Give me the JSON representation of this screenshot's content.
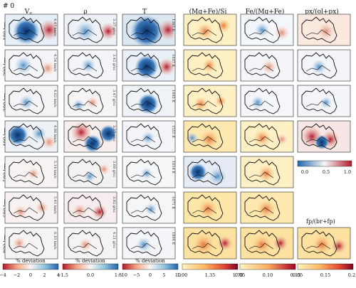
{
  "corner_label": "# 0",
  "column_titles": [
    "V_S",
    "ρ",
    "T",
    "(Mg+Fe)/Si",
    "Fe/(Mg+Fe)",
    "px/(ol+px)"
  ],
  "extra_title": "fp/(br+fp)",
  "depth_rows": [
    "100 km",
    "200 km",
    "300 km",
    "400 km",
    "500 km",
    "600 km",
    "800 km"
  ],
  "side_labels": {
    "vs": [
      "4.47 km/s",
      "4.54 km/s",
      "4.62 km/s",
      "4.86 km/s",
      "5.14 km/s",
      "5.41 km/s",
      "6.10 km/s"
    ],
    "rho": [
      "3.37 g/cc",
      "3.42 g/cc",
      "3.47 g/cc",
      "3.57 g/cc",
      "3.68 g/cc",
      "3.82 g/cc",
      "4.21 g/cc"
    ],
    "t": [
      "1367 K",
      "1437 K",
      "1493 K",
      "1555 K",
      "1614 K",
      "1671 K",
      "1804 K"
    ]
  },
  "colorbars": [
    {
      "label": "% deviation",
      "ticks": [
        "−4",
        "−2",
        "0",
        "2",
        "4"
      ]
    },
    {
      "label": "% deviation",
      "ticks": [
        "−1.5",
        "0.0",
        "1.5"
      ]
    },
    {
      "label": "% deviation",
      "ticks": [
        "−10",
        "−5",
        "0",
        "5",
        "10"
      ]
    },
    {
      "label": "",
      "ticks": [
        "1.00",
        "1.35",
        "1.70"
      ]
    },
    {
      "label": "",
      "ticks": [
        "0.05",
        "0.10",
        "0.15"
      ]
    },
    {
      "label": "",
      "ticks": [
        "0.05",
        "0.15",
        "0.25"
      ]
    }
  ],
  "inset_colorbar": {
    "ticks": [
      "0.0",
      "0.5",
      "1.0"
    ]
  },
  "colors": {
    "blue_dark": "#08306b",
    "blue": "#4f8fc6",
    "blue_light": "#c6dbef",
    "white": "#f7f7f7",
    "red_light": "#f4c0a8",
    "red": "#d6604d",
    "red_dark": "#67001f",
    "yellow": "#fde7a0",
    "orange": "#f5a05a",
    "map_outline": "#111111"
  }
}
